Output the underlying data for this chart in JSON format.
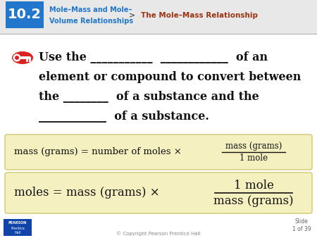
{
  "bg_color": "#ffffff",
  "num_box_color": "#2277cc",
  "num_text": "10.2",
  "num_text_color": "#ffffff",
  "subtitle_left1": "Mole–Mass and Mole–",
  "subtitle_left2": "Volume Relationships",
  "subtitle_left_color": "#2277cc",
  "arrow_color": "#555555",
  "subtitle_right": "The Mole–Mass Relationship",
  "subtitle_right_color": "#993311",
  "main_text_color": "#111111",
  "formula_bg": "#f5f0c0",
  "formula_border": "#d0c870",
  "formula_text_color": "#111111",
  "key_red": "#dd2222",
  "slide_text_color": "#666666",
  "copyright_color": "#888888",
  "pearson_box_color": "#1144aa",
  "dark_red": "#8b2010",
  "header_bg": "#e8e8e8",
  "fig_width": 4.5,
  "fig_height": 3.38,
  "dpi": 100
}
